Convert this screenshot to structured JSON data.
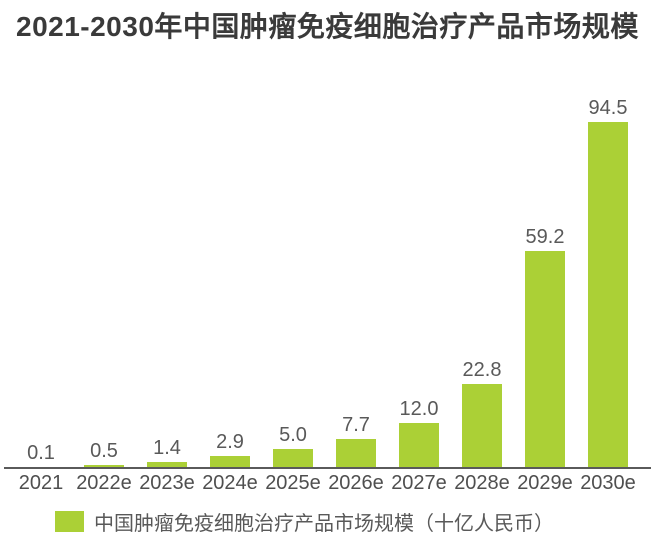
{
  "title": "2021-2030年中国肿瘤免疫细胞治疗产品市场规模",
  "legend": {
    "label": "中国肿瘤免疫细胞治疗产品市场规模（十亿人民币）",
    "swatch_color": "#abd036"
  },
  "colors": {
    "bar": "#abd036",
    "title_text": "#3a3a3a",
    "label_text": "#595959",
    "axis_line": "#5a5a5a",
    "background": "#ffffff"
  },
  "chart_data": {
    "type": "bar",
    "title": "2021-2030年中国肿瘤免疫细胞治疗产品市场规模",
    "categories": [
      "2021",
      "2022e",
      "2023e",
      "2024e",
      "2025e",
      "2026e",
      "2027e",
      "2028e",
      "2029e",
      "2030e"
    ],
    "values": [
      0.1,
      0.5,
      1.4,
      2.9,
      5.0,
      7.7,
      12.0,
      22.8,
      59.2,
      94.5
    ],
    "xlabel": "",
    "ylabel": "",
    "ylim": [
      0,
      100
    ],
    "grid": false,
    "value_labels": true,
    "bar_color": "#abd036",
    "legend_entries": [
      "中国肿瘤免疫细胞治疗产品市场规模（十亿人民币）"
    ],
    "legend_position": "bottom",
    "unit": "十亿人民币"
  }
}
